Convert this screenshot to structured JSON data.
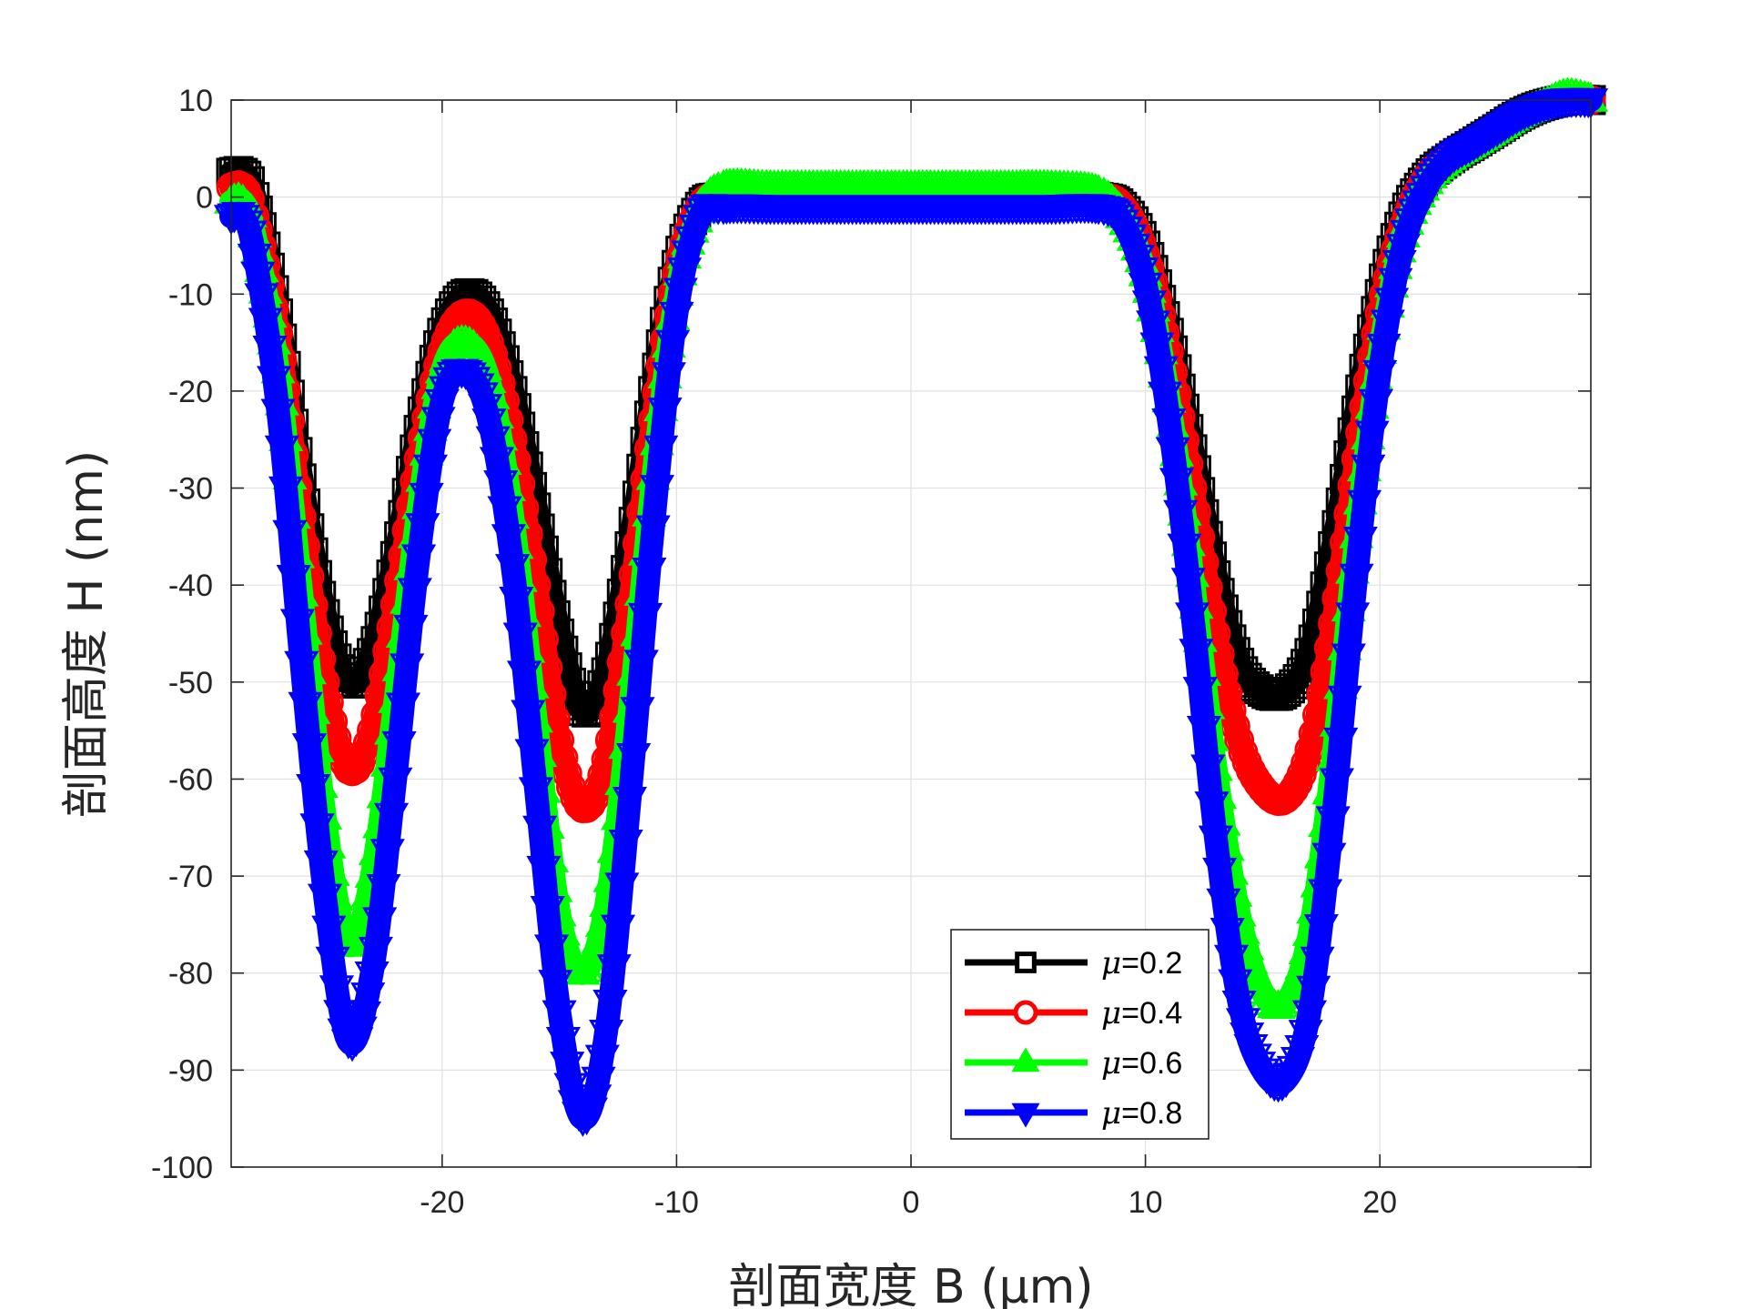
{
  "chart_data": {
    "type": "line",
    "title": "",
    "xlabel": "剖面宽度 B (μm)",
    "ylabel": "剖面高度 H (nm)",
    "xlim": [
      -29,
      29
    ],
    "ylim": [
      -100,
      10
    ],
    "xticks": [
      -20,
      -10,
      0,
      10,
      20
    ],
    "xtick_labels": [
      "-20",
      "-10",
      "0",
      "10",
      "20"
    ],
    "yticks": [
      10,
      0,
      -10,
      -20,
      -30,
      -40,
      -50,
      -60,
      -70,
      -80,
      -90,
      -100
    ],
    "ytick_labels": [
      "10",
      "0",
      "-10",
      "-20",
      "-30",
      "-40",
      "-50",
      "-60",
      "-70",
      "-80",
      "-90",
      "-100"
    ],
    "grid": true,
    "legend_position": "bottom-right",
    "series": [
      {
        "name": "μ=0.2",
        "legend_symbol": "μ",
        "legend_value": "=0.2",
        "color": "#000000",
        "marker": "square",
        "x": [
          -29,
          -28.5,
          -28,
          -27,
          -26,
          -25,
          -24,
          -23,
          -22,
          -21,
          -20,
          -19,
          -18,
          -17,
          -16,
          -15,
          -14,
          -13,
          -12,
          -11,
          -10,
          -9,
          -8,
          -6,
          -4,
          -2,
          0,
          2,
          4,
          6,
          8,
          9,
          10,
          11,
          12,
          13,
          14,
          15,
          16,
          17,
          18,
          19,
          20,
          21,
          22,
          23,
          24,
          25,
          26,
          27,
          28,
          29
        ],
        "y": [
          2.5,
          2.5,
          0,
          -12,
          -29,
          -43,
          -50,
          -47,
          -37,
          -24,
          -14,
          -10,
          -12,
          -20,
          -32,
          -45,
          -53,
          -49,
          -36,
          -20,
          -7,
          -1,
          0,
          0,
          0,
          0,
          0,
          0,
          0,
          0,
          0,
          -1,
          -5,
          -14,
          -26,
          -39,
          -48,
          -51,
          -51,
          -47,
          -36,
          -22,
          -10,
          -2,
          2,
          4,
          5.5,
          7,
          8.5,
          9.5,
          10,
          10
        ]
      },
      {
        "name": "μ=0.4",
        "legend_symbol": "μ",
        "legend_value": "=0.4",
        "color": "#ff0000",
        "marker": "circle",
        "x": [
          -29,
          -28.5,
          -28,
          -27,
          -26,
          -25,
          -24,
          -23,
          -22,
          -21,
          -20,
          -19,
          -18,
          -17,
          -16,
          -15,
          -14,
          -13,
          -12,
          -11,
          -10,
          -9,
          -8,
          -6,
          -4,
          -2,
          0,
          2,
          4,
          6,
          8,
          9,
          10,
          11,
          12,
          13,
          14,
          15,
          16,
          17,
          18,
          19,
          20,
          21,
          22,
          23,
          24,
          25,
          26,
          27,
          28,
          29
        ],
        "y": [
          1,
          1,
          -2,
          -14,
          -33,
          -50,
          -59,
          -55,
          -42,
          -27,
          -16,
          -12,
          -15,
          -25,
          -40,
          -56,
          -63,
          -58,
          -42,
          -23,
          -8,
          -1,
          0,
          0,
          0,
          0,
          0,
          0,
          0,
          0,
          0,
          -1,
          -6,
          -16,
          -30,
          -45,
          -56,
          -61,
          -62,
          -57,
          -44,
          -27,
          -12,
          -3,
          2,
          4,
          5.5,
          7,
          8.5,
          9.5,
          10,
          10
        ]
      },
      {
        "name": "μ=0.6",
        "legend_symbol": "μ",
        "legend_value": "=0.6",
        "color": "#00ff00",
        "marker": "triangle-up",
        "x": [
          -29,
          -28.5,
          -28,
          -27,
          -26,
          -25,
          -24,
          -23,
          -22,
          -21,
          -20,
          -19,
          -18,
          -17,
          -16,
          -15,
          -14,
          -13,
          -12,
          -11,
          -10,
          -9,
          -8,
          -6,
          -4,
          -2,
          0,
          2,
          4,
          6,
          8,
          9,
          10,
          11,
          12,
          13,
          14,
          15,
          16,
          17,
          18,
          19,
          20,
          21,
          22,
          23,
          24,
          25,
          26,
          27,
          28,
          29
        ],
        "y": [
          -0.5,
          -0.5,
          -4,
          -18,
          -41,
          -64,
          -77,
          -70,
          -52,
          -32,
          -18,
          -15,
          -19,
          -33,
          -54,
          -74,
          -80,
          -73,
          -53,
          -29,
          -10,
          -1.5,
          1,
          1,
          1,
          1,
          1,
          1,
          1,
          1,
          0.5,
          -2,
          -8,
          -21,
          -39,
          -59,
          -74,
          -82,
          -83,
          -76,
          -58,
          -35,
          -16,
          -4,
          1.5,
          4,
          5.5,
          7,
          8.5,
          9.5,
          10.5,
          10
        ]
      },
      {
        "name": "μ=0.8",
        "legend_symbol": "μ",
        "legend_value": "=0.8",
        "color": "#0000ff",
        "marker": "triangle-down",
        "x": [
          -29,
          -28.5,
          -28,
          -27,
          -26,
          -25,
          -24,
          -23,
          -22,
          -21,
          -20,
          -19,
          -18,
          -17,
          -16,
          -15,
          -14,
          -13,
          -12,
          -11,
          -10,
          -9,
          -8,
          -6,
          -4,
          -2,
          0,
          2,
          4,
          6,
          8,
          9,
          10,
          11,
          12,
          13,
          14,
          15,
          16,
          17,
          18,
          19,
          20,
          21,
          22,
          23,
          24,
          25,
          26,
          27,
          28,
          29
        ],
        "y": [
          -2,
          -2,
          -6,
          -22,
          -48,
          -72,
          -87,
          -80,
          -60,
          -37,
          -21,
          -18,
          -23,
          -38,
          -61,
          -84,
          -95,
          -86,
          -62,
          -34,
          -12,
          -2,
          -1,
          -1,
          -1,
          -1,
          -1,
          -1,
          -1,
          -1,
          -1,
          -2.5,
          -9,
          -23,
          -43,
          -66,
          -83,
          -90,
          -91,
          -84,
          -64,
          -39,
          -18,
          -5,
          1,
          4,
          5.5,
          7,
          8.5,
          9.5,
          10,
          10
        ]
      }
    ]
  }
}
